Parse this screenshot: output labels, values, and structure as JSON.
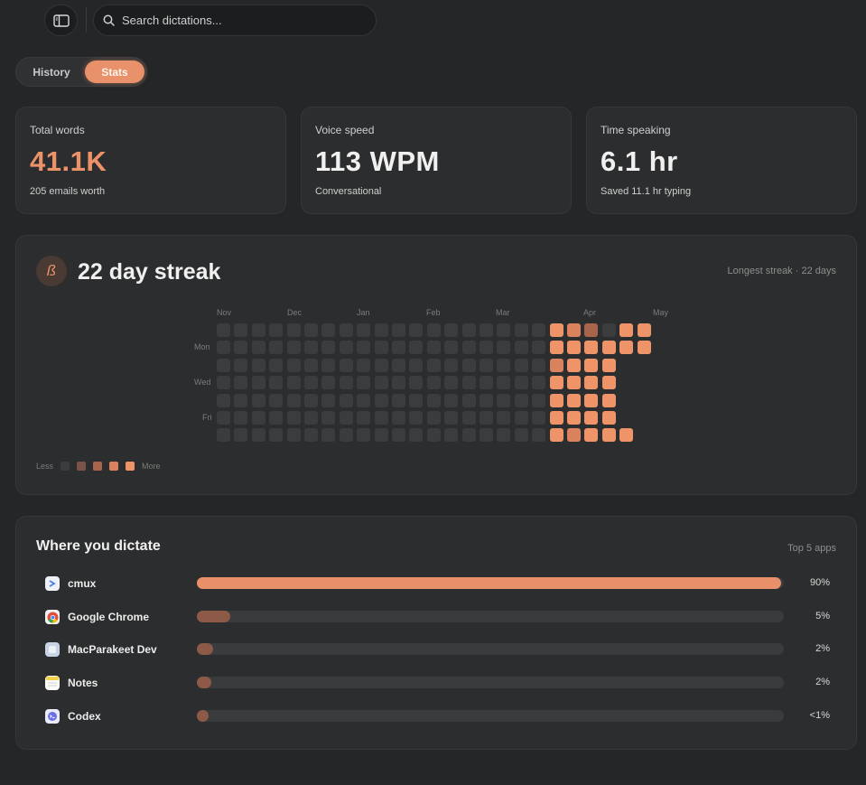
{
  "search": {
    "placeholder": "Search dictations..."
  },
  "tabs": [
    {
      "label": "History",
      "active": false
    },
    {
      "label": "Stats",
      "active": true
    }
  ],
  "stats": [
    {
      "label": "Total words",
      "value": "41.1K",
      "sub": "205 emails worth",
      "accent": true
    },
    {
      "label": "Voice speed",
      "value": "113 WPM",
      "sub": "Conversational",
      "accent": false
    },
    {
      "label": "Time speaking",
      "value": "6.1 hr",
      "sub": "Saved 11.1 hr typing",
      "accent": false
    }
  ],
  "streak": {
    "title": "22 day streak",
    "longest": "Longest streak · 22 days",
    "icon": "quill-icon",
    "months": [
      "Nov",
      "Dec",
      "Jan",
      "Feb",
      "Mar",
      "Apr",
      "May"
    ],
    "days": [
      "Mon",
      "Wed",
      "Fri"
    ],
    "legend": {
      "less": "Less",
      "more": "More"
    },
    "colors": [
      "#3b3c3e",
      "#7a5447",
      "#a9654c",
      "#d9825d",
      "#ee9468"
    ],
    "grid_weeks": 26,
    "heat": [
      "0000000000000000000432044",
      "0000000000000000000444444",
      "00000000000000000003444",
      "00000000000000000004444",
      "00000000000000000004444",
      "00000000000000000004444",
      "000000000000000000043444"
    ]
  },
  "apps": {
    "title": "Where you dictate",
    "sub": "Top 5 apps",
    "items": [
      {
        "name": "cmux",
        "pct": "90%",
        "fraction": 0.996,
        "color": "#e8906a",
        "icon": "terminal-icon",
        "icon_color": "#4a7fe0"
      },
      {
        "name": "Google Chrome",
        "pct": "5%",
        "fraction": 0.057,
        "color": "#8c5a47",
        "icon": "chrome-icon",
        "icon_color": "#e44c3c"
      },
      {
        "name": "MacParakeet Dev",
        "pct": "2%",
        "fraction": 0.028,
        "color": "#8c5a47",
        "icon": "app-icon",
        "icon_color": "#c8d4e6"
      },
      {
        "name": "Notes",
        "pct": "2%",
        "fraction": 0.024,
        "color": "#8c5a47",
        "icon": "notes-icon",
        "icon_color": "#f5d04a"
      },
      {
        "name": "Codex",
        "pct": "<1%",
        "fraction": 0.018,
        "color": "#8c5a47",
        "icon": "codex-icon",
        "icon_color": "#6a6ee8"
      }
    ]
  }
}
